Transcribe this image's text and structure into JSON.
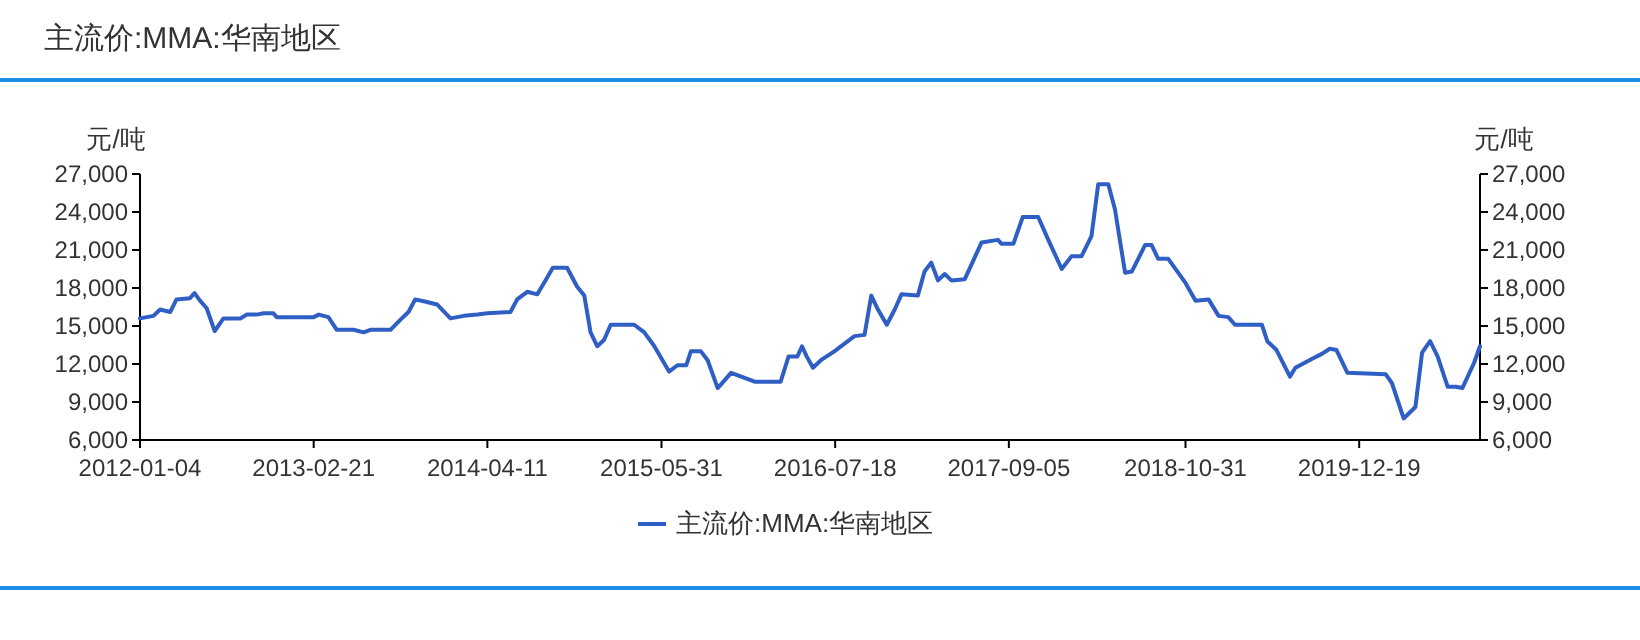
{
  "chart_data": {
    "type": "line",
    "title": "主流价:MMA:华南地区",
    "ylabel": "元/吨",
    "y2label": "元/吨",
    "ylim": [
      6000,
      27000
    ],
    "yticks": [
      {
        "value": 6000,
        "label": "6,000"
      },
      {
        "value": 9000,
        "label": "9,000"
      },
      {
        "value": 12000,
        "label": "12,000"
      },
      {
        "value": 15000,
        "label": "15,000"
      },
      {
        "value": 18000,
        "label": "18,000"
      },
      {
        "value": 21000,
        "label": "21,000"
      },
      {
        "value": 24000,
        "label": "24,000"
      },
      {
        "value": 27000,
        "label": "27,000"
      }
    ],
    "y2lim": [
      6000,
      27000
    ],
    "y2ticks": [
      {
        "value": 6000,
        "label": "6,000"
      },
      {
        "value": 9000,
        "label": "9,000"
      },
      {
        "value": 12000,
        "label": "12,000"
      },
      {
        "value": 15000,
        "label": "15,000"
      },
      {
        "value": 18000,
        "label": "18,000"
      },
      {
        "value": 21000,
        "label": "21,000"
      },
      {
        "value": 24000,
        "label": "24,000"
      },
      {
        "value": 27000,
        "label": "27,000"
      }
    ],
    "xlim": [
      "2012-01-04",
      "2020-10-02"
    ],
    "xticks": [
      "2012-01-04",
      "2013-02-21",
      "2014-04-11",
      "2015-05-31",
      "2016-07-18",
      "2017-09-05",
      "2018-10-31",
      "2019-12-19"
    ],
    "x": [
      "2012-01-04",
      "2012-02-05",
      "2012-02-21",
      "2012-03-16",
      "2012-03-31",
      "2012-05-02",
      "2012-05-13",
      "2012-05-26",
      "2012-06-11",
      "2012-06-30",
      "2012-07-21",
      "2012-08-30",
      "2012-09-15",
      "2012-10-08",
      "2012-10-25",
      "2012-11-17",
      "2012-11-25",
      "2013-01-04",
      "2013-02-21",
      "2013-03-05",
      "2013-03-28",
      "2013-04-17",
      "2013-05-27",
      "2013-06-20",
      "2013-07-06",
      "2013-08-23",
      "2013-09-16",
      "2013-10-05",
      "2013-10-21",
      "2013-11-18",
      "2013-12-12",
      "2014-01-13",
      "2014-02-14",
      "2014-03-18",
      "2014-04-11",
      "2014-06-05",
      "2014-06-21",
      "2014-07-15",
      "2014-08-08",
      "2014-08-24",
      "2014-09-14",
      "2014-10-18",
      "2014-11-11",
      "2014-11-28",
      "2014-12-13",
      "2014-12-29",
      "2015-01-14",
      "2015-01-30",
      "2015-03-27",
      "2015-04-20",
      "2015-05-14",
      "2015-06-18",
      "2015-07-08",
      "2015-07-29",
      "2015-08-09",
      "2015-09-02",
      "2015-09-18",
      "2015-10-12",
      "2015-11-13",
      "2015-12-07",
      "2016-01-08",
      "2016-03-10",
      "2016-03-29",
      "2016-04-19",
      "2016-04-30",
      "2016-05-11",
      "2016-05-26",
      "2016-06-14",
      "2016-07-16",
      "2016-09-02",
      "2016-09-26",
      "2016-10-12",
      "2016-10-28",
      "2016-11-18",
      "2016-12-07",
      "2016-12-23",
      "2017-01-31",
      "2017-02-16",
      "2017-03-04",
      "2017-03-20",
      "2017-04-05",
      "2017-04-21",
      "2017-05-23",
      "2017-07-02",
      "2017-08-10",
      "2017-08-18",
      "2017-09-16",
      "2017-10-08",
      "2017-11-14",
      "2017-12-08",
      "2018-01-09",
      "2018-02-01",
      "2018-02-25",
      "2018-03-21",
      "2018-04-06",
      "2018-04-30",
      "2018-05-16",
      "2018-06-09",
      "2018-06-25",
      "2018-07-27",
      "2018-08-11",
      "2018-08-27",
      "2018-09-20",
      "2018-10-31",
      "2018-11-24",
      "2018-12-25",
      "2019-01-18",
      "2019-02-10",
      "2019-02-26",
      "2019-05-01",
      "2019-05-14",
      "2019-06-05",
      "2019-07-07",
      "2019-07-20",
      "2019-08-28",
      "2019-09-21",
      "2019-10-10",
      "2019-10-26",
      "2019-11-21",
      "2020-02-20",
      "2020-03-06",
      "2020-04-03",
      "2020-05-01",
      "2020-05-17",
      "2020-06-05",
      "2020-06-23",
      "2020-07-17",
      "2020-08-05",
      "2020-08-21",
      "2020-09-18",
      "2020-10-02"
    ],
    "series": [
      {
        "name": "主流价:MMA:华南地区",
        "color": "#2f5fc4",
        "values": [
          15600,
          15800,
          16300,
          16100,
          17100,
          17200,
          17600,
          17000,
          16400,
          14600,
          15600,
          15600,
          15900,
          15900,
          16000,
          16000,
          15700,
          15700,
          15700,
          15900,
          15700,
          14700,
          14700,
          14500,
          14700,
          14700,
          15500,
          16100,
          17100,
          16900,
          16700,
          15600,
          15800,
          15900,
          16000,
          16100,
          17100,
          17700,
          17500,
          18400,
          19600,
          19600,
          18100,
          17400,
          14500,
          13400,
          13900,
          15100,
          15100,
          14500,
          13400,
          11400,
          11900,
          11900,
          13000,
          13000,
          12300,
          10100,
          11300,
          11000,
          10600,
          10600,
          12600,
          12600,
          13400,
          12600,
          11700,
          12300,
          13000,
          14200,
          14300,
          17400,
          16300,
          15100,
          16300,
          17500,
          17400,
          19300,
          20000,
          18600,
          19100,
          18600,
          18700,
          21600,
          21800,
          21500,
          21500,
          23600,
          23600,
          21800,
          19500,
          20500,
          20500,
          22100,
          26200,
          26200,
          24200,
          19200,
          19300,
          21400,
          21400,
          20300,
          20300,
          18400,
          17000,
          17100,
          15800,
          15700,
          15100,
          15100,
          13800,
          13100,
          11000,
          11700,
          12400,
          12800,
          13200,
          13100,
          11300,
          11200,
          10500,
          7700,
          8600,
          12900,
          13800,
          12600,
          10200,
          10200,
          10100,
          12100,
          13400
        ]
      }
    ],
    "legend": "bottom",
    "marker": "none",
    "line_style": "solid",
    "grid": false
  }
}
